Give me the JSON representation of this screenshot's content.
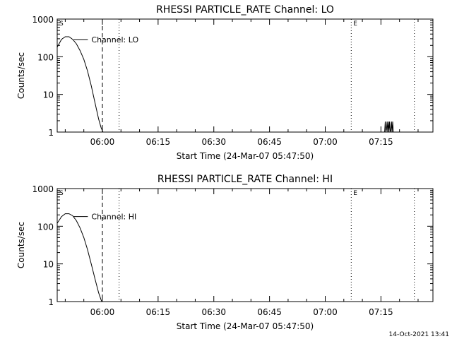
{
  "chart_data": [
    {
      "type": "line",
      "title": "RHESSI PARTICLE_RATE Channel: LO",
      "xlabel": "Start Time (24-Mar-07 05:47:50)",
      "ylabel": "Counts/sec",
      "yscale": "log",
      "ylim": [
        1,
        1000
      ],
      "xlim": [
        "05:47:50",
        "07:29:00"
      ],
      "x_tick_labels": [
        "06:00",
        "06:15",
        "06:30",
        "06:45",
        "07:00",
        "07:15"
      ],
      "y_tick_labels": [
        "1",
        "10",
        "100",
        "1000"
      ],
      "series": [
        {
          "name": "Channel: LO",
          "x": [
            "05:47:50",
            "05:49:00",
            "05:50:00",
            "05:51:00",
            "05:52:00",
            "05:53:00",
            "05:54:00",
            "05:55:00",
            "05:56:00",
            "05:57:00",
            "05:58:00",
            "05:59:00",
            "05:59:40",
            "06:00:10"
          ],
          "y": [
            180,
            290,
            340,
            340,
            290,
            220,
            145,
            85,
            42,
            17,
            6,
            2.2,
            1.3,
            1
          ]
        },
        {
          "name": "",
          "x": [
            "07:16:00",
            "07:16:10",
            "07:16:20",
            "07:16:30",
            "07:16:40",
            "07:16:50",
            "07:17:00",
            "07:17:10",
            "07:17:20",
            "07:17:30",
            "07:17:40",
            "07:17:50",
            "07:18:00",
            "07:18:10",
            "07:18:20"
          ],
          "y": [
            1,
            1.9,
            1,
            1.2,
            1.9,
            1,
            1.9,
            1,
            1.9,
            1.1,
            1,
            1.9,
            1,
            1.9,
            1
          ]
        }
      ],
      "vlines": [
        {
          "label": "S",
          "x": "05:47:50",
          "style": "dotted"
        },
        {
          "label": "",
          "x": "06:00:00",
          "style": "dashed"
        },
        {
          "label": "",
          "x": "06:04:30",
          "style": "dotted"
        },
        {
          "label": "E",
          "x": "07:07:00",
          "style": "dotted"
        },
        {
          "label": "",
          "x": "07:24:00",
          "style": "dotted"
        }
      ],
      "grid": false
    },
    {
      "type": "line",
      "title": "RHESSI PARTICLE_RATE Channel: HI",
      "xlabel": "Start Time (24-Mar-07 05:47:50)",
      "ylabel": "Counts/sec",
      "yscale": "log",
      "ylim": [
        1,
        1000
      ],
      "xlim": [
        "05:47:50",
        "07:29:00"
      ],
      "x_tick_labels": [
        "06:00",
        "06:15",
        "06:30",
        "06:45",
        "07:00",
        "07:15"
      ],
      "y_tick_labels": [
        "1",
        "10",
        "100",
        "1000"
      ],
      "series": [
        {
          "name": "Channel: HI",
          "x": [
            "05:47:50",
            "05:49:00",
            "05:50:00",
            "05:51:00",
            "05:52:00",
            "05:53:00",
            "05:54:00",
            "05:55:00",
            "05:56:00",
            "05:57:00",
            "05:58:00",
            "05:59:00",
            "05:59:40",
            "05:59:50"
          ],
          "y": [
            120,
            180,
            215,
            215,
            190,
            140,
            90,
            50,
            24,
            10,
            4,
            1.7,
            1.1,
            1
          ]
        }
      ],
      "vlines": [
        {
          "label": "S",
          "x": "05:47:50",
          "style": "dotted"
        },
        {
          "label": "",
          "x": "06:00:00",
          "style": "dashed"
        },
        {
          "label": "",
          "x": "06:04:30",
          "style": "dotted"
        },
        {
          "label": "E",
          "x": "07:07:00",
          "style": "dotted"
        },
        {
          "label": "",
          "x": "07:24:00",
          "style": "dotted"
        }
      ],
      "grid": false
    }
  ],
  "footer": {
    "timestamp": "14-Oct-2021 13:41"
  }
}
